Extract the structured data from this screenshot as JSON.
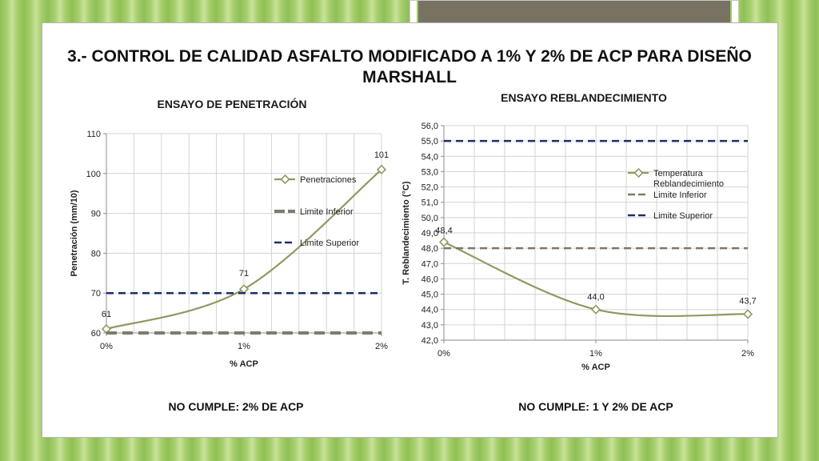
{
  "slide": {
    "title": "3.- CONTROL DE CALIDAD ASFALTO MODIFICADO A 1% Y 2% DE ACP PARA DISEÑO MARSHALL",
    "left_verdict": "NO CUMPLE: 2% DE ACP",
    "right_verdict": "NO CUMPLE: 1 Y 2% DE ACP"
  },
  "colors": {
    "series_main": "#8e9a62",
    "limit_lower_left": "#807a6b",
    "limit_lower_right": "#817566",
    "limit_upper": "#1a2f6b",
    "grid": "#d3d3d3",
    "axis": "#8c8c8c"
  },
  "chart_data": [
    {
      "type": "line",
      "title": "ENSAYO DE PENETRACIÓN",
      "xlabel": "% ACP",
      "ylabel": "Penetración (mm/10)",
      "categories": [
        "0%",
        "1%",
        "2%"
      ],
      "ylim": [
        60,
        110
      ],
      "yticks": [
        "60",
        "70",
        "80",
        "90",
        "100",
        "110"
      ],
      "grid": true,
      "legend": "right",
      "series": [
        {
          "name": "Penetraciones",
          "values": [
            61,
            71,
            101
          ],
          "labels": [
            "61",
            "71",
            "101"
          ],
          "style": "smooth-marker"
        },
        {
          "name": "Limite Inferior",
          "values": [
            60,
            60,
            60
          ],
          "style": "dash-thick"
        },
        {
          "name": "Limite Superior",
          "values": [
            70,
            70,
            70
          ],
          "style": "dash"
        }
      ]
    },
    {
      "type": "line",
      "title": "ENSAYO REBLANDECIMIENTO",
      "xlabel": "% ACP",
      "ylabel": "T. Reblandecimiento (°C)",
      "categories": [
        "0%",
        "1%",
        "2%"
      ],
      "ylim": [
        42,
        56
      ],
      "yticks": [
        "42,0",
        "43,0",
        "44,0",
        "45,0",
        "46,0",
        "47,0",
        "48,0",
        "49,0",
        "50,0",
        "51,0",
        "52,0",
        "53,0",
        "54,0",
        "55,0",
        "56,0"
      ],
      "grid": true,
      "legend": "right",
      "series": [
        {
          "name": "Temperatura Reblandecimiento",
          "values": [
            48.4,
            44.0,
            43.7
          ],
          "labels": [
            "48,4",
            "44,0",
            "43,7"
          ],
          "style": "smooth-marker"
        },
        {
          "name": "Limite Inferior",
          "values": [
            48,
            48,
            48
          ],
          "style": "dash"
        },
        {
          "name": "Limite Superior",
          "values": [
            55,
            55,
            55
          ],
          "style": "dash"
        }
      ]
    }
  ]
}
